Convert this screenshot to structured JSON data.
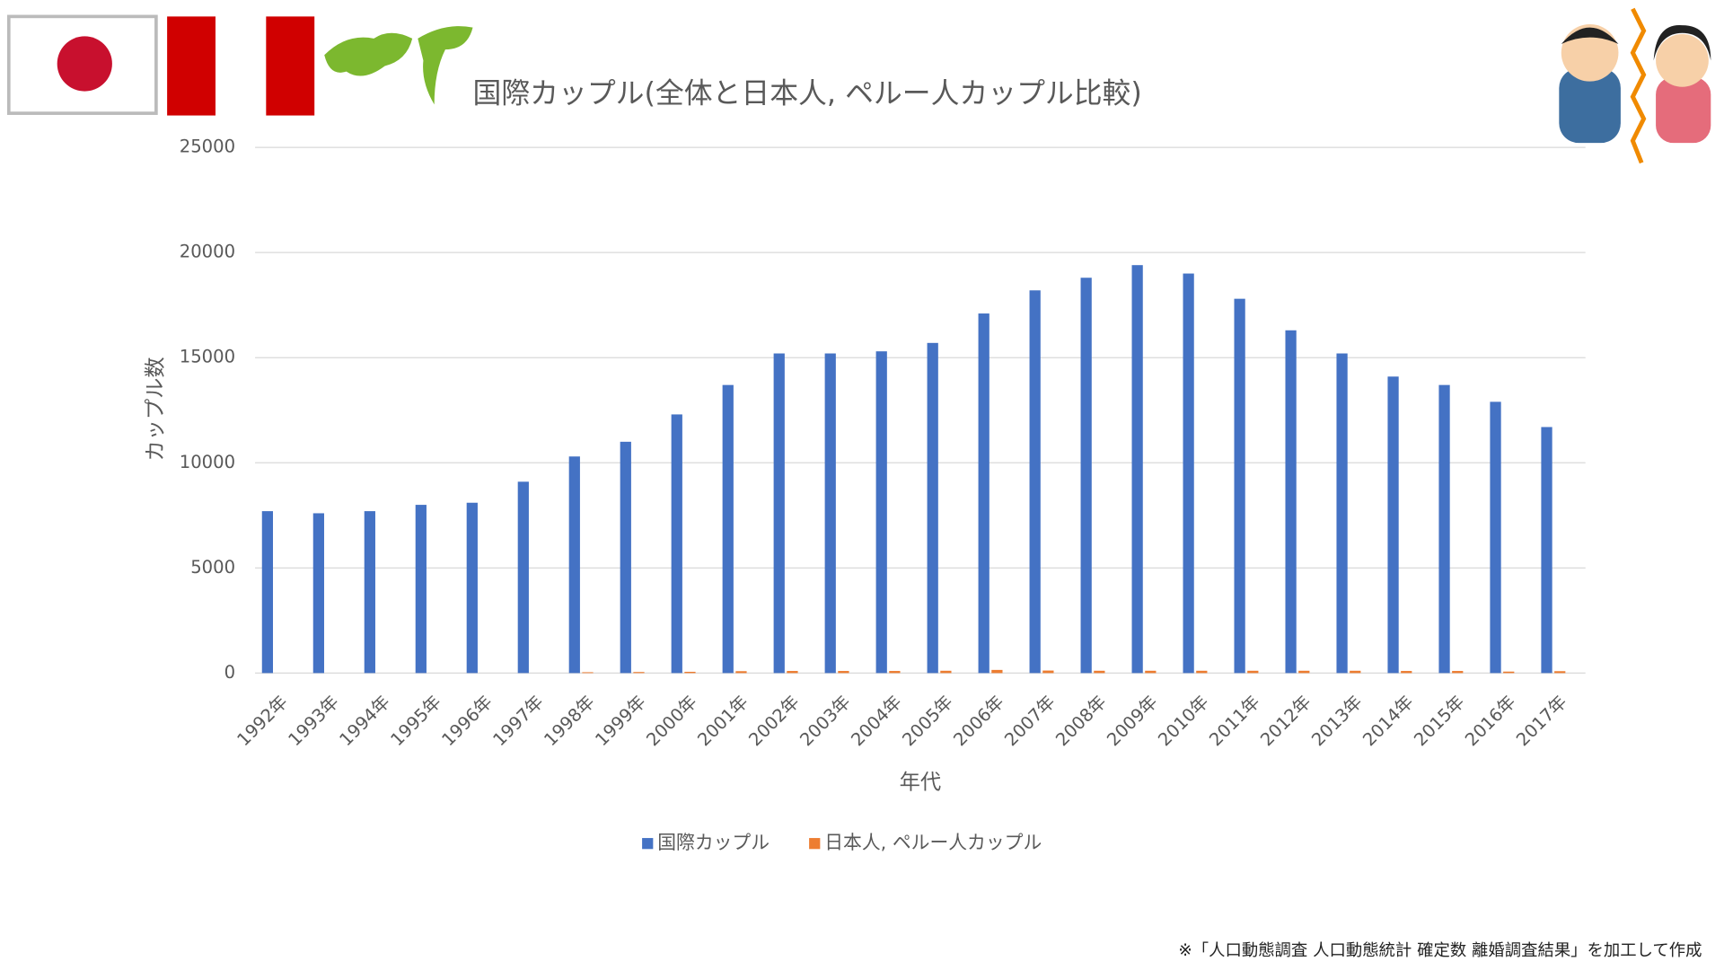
{
  "chart_data": {
    "type": "bar",
    "title": "国際カップル(全体と日本人, ペルー人カップル比較)",
    "x_label": "年代",
    "y_label": "カップル数",
    "categories": [
      "1992年",
      "1993年",
      "1994年",
      "1995年",
      "1996年",
      "1997年",
      "1998年",
      "1999年",
      "2000年",
      "2001年",
      "2002年",
      "2003年",
      "2004年",
      "2005年",
      "2006年",
      "2007年",
      "2008年",
      "2009年",
      "2010年",
      "2011年",
      "2012年",
      "2013年",
      "2014年",
      "2015年",
      "2016年",
      "2017年"
    ],
    "series": [
      {
        "name": "国際カップル",
        "color": "#4472c4",
        "values": [
          7700,
          7600,
          7700,
          8000,
          8100,
          9100,
          10300,
          11000,
          12300,
          13700,
          15200,
          15200,
          15300,
          15700,
          17100,
          18200,
          18800,
          19400,
          19000,
          17800,
          16300,
          15200,
          14100,
          13700,
          12900,
          11700
        ]
      },
      {
        "name": "日本人, ペルー人カップル",
        "color": "#ed7d31",
        "values": [
          0,
          0,
          0,
          0,
          0,
          0,
          40,
          50,
          60,
          90,
          100,
          100,
          100,
          110,
          150,
          120,
          110,
          110,
          110,
          110,
          110,
          110,
          100,
          100,
          70,
          90
        ]
      }
    ],
    "ylim": [
      0,
      25000
    ],
    "yticks": [
      0,
      5000,
      10000,
      15000,
      20000,
      25000
    ],
    "grid": true,
    "legend": "bottom",
    "source": "※「人口動態調査 人口動態統計 確定数 離婚調査結果」を加工して作成"
  }
}
